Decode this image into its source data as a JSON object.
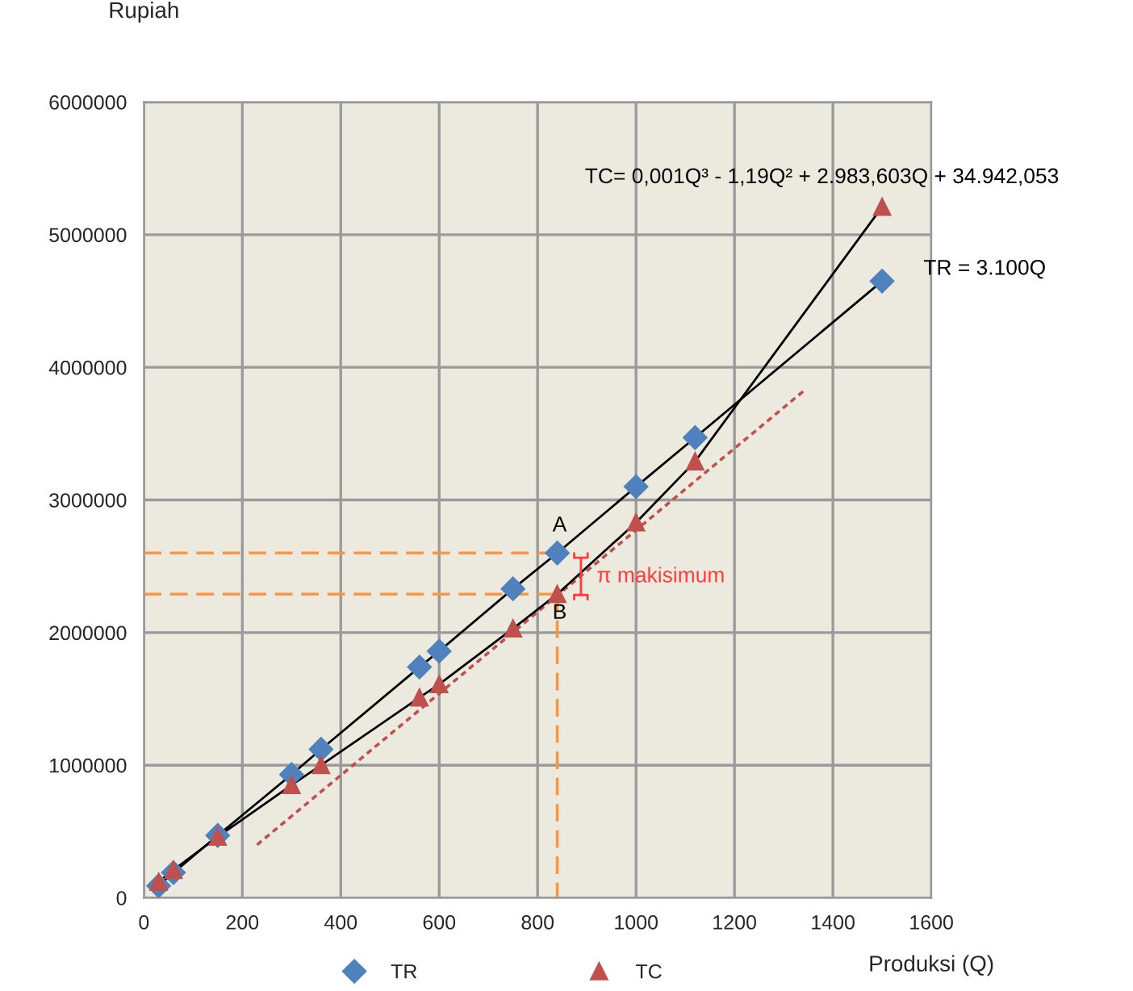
{
  "chart_data": {
    "type": "line",
    "ylabel": "Rupiah",
    "xlabel": "Produksi (Q)",
    "xlim": [
      0,
      1600
    ],
    "xticks": [
      0,
      200,
      400,
      600,
      800,
      1000,
      1200,
      1400,
      1600
    ],
    "ylim": [
      0,
      6000000
    ],
    "yticks": [
      0,
      1000000,
      2000000,
      3000000,
      4000000,
      5000000,
      6000000
    ],
    "grid": true,
    "legend": "bottom",
    "series": [
      {
        "name": "TR",
        "color": "#4f81bd",
        "marker": "diamond",
        "x": [
          30,
          60,
          150,
          300,
          360,
          560,
          600,
          750,
          840,
          1000,
          1120,
          1500
        ],
        "values": [
          90000,
          190000,
          470000,
          930000,
          1120000,
          1740000,
          1860000,
          2330000,
          2600000,
          3100000,
          3470000,
          4650000
        ]
      },
      {
        "name": "TC",
        "color": "#c0504d",
        "marker": "triangle",
        "x": [
          30,
          60,
          150,
          300,
          360,
          560,
          600,
          750,
          840,
          1000,
          1120,
          1500
        ],
        "values": [
          120000,
          210000,
          460000,
          850000,
          1000000,
          1510000,
          1610000,
          2030000,
          2290000,
          2830000,
          3290000,
          5210000
        ]
      },
      {
        "color": "#c0504d",
        "line_style": "dotted",
        "x": [
          230,
          1340
        ],
        "values": [
          400000,
          3820000
        ]
      },
      {
        "color": "#f79646",
        "line_style": "dashed",
        "x": [
          0,
          840
        ],
        "values": [
          2600000,
          2600000
        ]
      },
      {
        "color": "#f79646",
        "line_style": "dashed",
        "x": [
          0,
          840
        ],
        "values": [
          2290000,
          2290000
        ]
      },
      {
        "color": "#f79646",
        "line_style": "dashed",
        "x": [
          840,
          840
        ],
        "values": [
          2290000,
          0
        ]
      }
    ],
    "annotations": [
      "A",
      "B",
      "π makisimum",
      "TC= 0,001Q³ - 1,19Q² + 2.983,603Q + 34.942,053",
      "TR = 3.100Q"
    ]
  }
}
